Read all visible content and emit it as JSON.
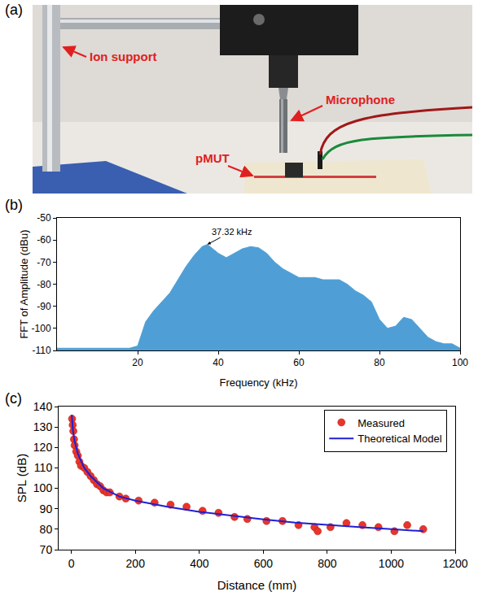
{
  "photo": {
    "panel": "(a)",
    "labels": [
      "Ion support",
      "Microphone",
      "pMUT"
    ]
  },
  "chart_data": [
    {
      "panel": "(b)",
      "type": "area",
      "color": "#4f9fd6",
      "grid": false,
      "x_label": "Frequency (kHz)",
      "y_label": "FFT of Amplitude (dBu)",
      "x": [
        0,
        2,
        4,
        6,
        8,
        10,
        12,
        14,
        16,
        18,
        20,
        22,
        24,
        26,
        28,
        30,
        32,
        34,
        36,
        37.32,
        38,
        40,
        42,
        44,
        46,
        48,
        50,
        52,
        54,
        56,
        58,
        60,
        62,
        64,
        66,
        68,
        70,
        72,
        74,
        76,
        78,
        80,
        82,
        84,
        86,
        88,
        90,
        92,
        94,
        96,
        98,
        100
      ],
      "values": [
        -109,
        -109,
        -109,
        -109,
        -109,
        -109,
        -109,
        -109,
        -109,
        -109,
        -108,
        -97,
        -92,
        -88,
        -84,
        -78,
        -72,
        -67,
        -63,
        -62,
        -63,
        -66,
        -68,
        -66,
        -64,
        -63,
        -63.5,
        -66,
        -70,
        -73,
        -75,
        -77,
        -77,
        -77,
        -78,
        -78,
        -78,
        -80,
        -83,
        -85,
        -88,
        -96,
        -100,
        -99,
        -95,
        -96,
        -100,
        -104,
        -106,
        -107,
        -107,
        -109
      ],
      "xlim": [
        0,
        100
      ],
      "xticks": [
        20,
        40,
        60,
        80,
        100
      ],
      "ylim": [
        -110,
        -50
      ],
      "yticks": [
        -110,
        -100,
        -90,
        -80,
        -70,
        -60,
        -50
      ],
      "annotations": [
        {
          "text": "37.32 kHz",
          "x": 37.32,
          "y": -62
        }
      ]
    },
    {
      "panel": "(c)",
      "type": "scatter",
      "grid": false,
      "legend": "top right",
      "x_label": "Distance (mm)",
      "y_label": "SPL (dB)",
      "xlim": [
        -40,
        1200
      ],
      "xticks": [
        0,
        200,
        400,
        600,
        800,
        1000,
        1200
      ],
      "ylim": [
        70,
        140
      ],
      "yticks": [
        70,
        80,
        90,
        100,
        110,
        120,
        130,
        140
      ],
      "series": [
        {
          "name": "Measured",
          "type": "scatter",
          "marker": "circle",
          "color": "#e8352b",
          "x": [
            2,
            4,
            6,
            8,
            10,
            15,
            20,
            25,
            30,
            40,
            50,
            60,
            70,
            80,
            90,
            100,
            110,
            120,
            150,
            170,
            210,
            260,
            310,
            360,
            410,
            460,
            510,
            550,
            610,
            660,
            710,
            760,
            770,
            810,
            860,
            910,
            960,
            1010,
            1050,
            1100
          ],
          "values": [
            134,
            131,
            128,
            124,
            121,
            118,
            116,
            113,
            111,
            110,
            108,
            106,
            104,
            102,
            101,
            99,
            98,
            98,
            96,
            95,
            94,
            93,
            92,
            91,
            89,
            88,
            86,
            85,
            84,
            84,
            82,
            81,
            79,
            81,
            83,
            82,
            81,
            79,
            82,
            80
          ]
        },
        {
          "name": "Theoretical Model",
          "type": "line",
          "line_style": "solid",
          "color": "#1f1fd6",
          "x": [
            1,
            5,
            10,
            20,
            40,
            60,
            100,
            150,
            200,
            300,
            400,
            500,
            600,
            700,
            800,
            900,
            1000,
            1100
          ],
          "values": [
            136,
            128,
            123,
            117,
            110,
            106,
            100,
            96,
            94,
            91,
            88.5,
            86.5,
            84.8,
            83.2,
            82,
            81,
            80,
            79
          ]
        }
      ]
    }
  ]
}
